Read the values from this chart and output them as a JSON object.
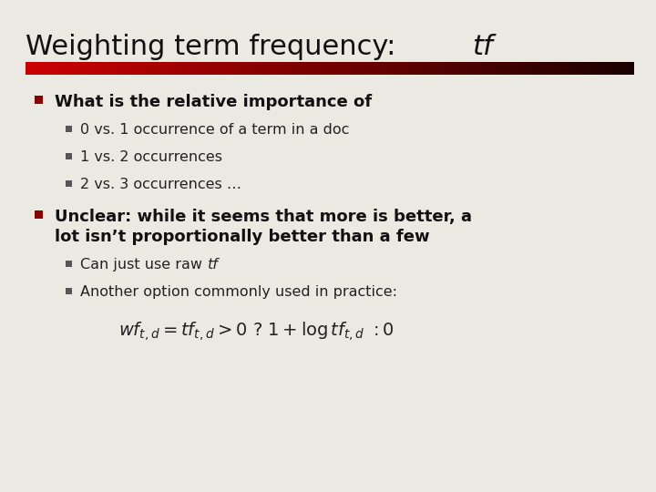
{
  "background_color": "#eae9e2",
  "title_normal": "Weighting term frequency:  ",
  "title_italic": "tf",
  "title_fontsize": 22,
  "separator_color_left": "#cc0000",
  "separator_color_right": "#1a0000",
  "bullet_color": "#8b0000",
  "sub_bullet_color": "#555555",
  "bullet1_text": "What is the relative importance of",
  "sub_bullets": [
    "0 vs. 1 occurrence of a term in a doc",
    "1 vs. 2 occurrences",
    "2 vs. 3 occurrences …"
  ],
  "bullet2_line1": "Unclear: while it seems that more is better, a",
  "bullet2_line2": "lot isn’t proportionally better than a few",
  "sub_bullet2_1": "Can just use raw ",
  "sub_bullet2_1_italic": "tf",
  "sub_bullet2_2": "Another option commonly used in practice:",
  "formula": "$wf_{t,d} = tf_{t,d} > 0\\ ?\\ 1+\\log tf_{t,d}\\ : 0$",
  "main_fontsize": 13,
  "sub_fontsize": 11.5,
  "formula_fontsize": 14
}
